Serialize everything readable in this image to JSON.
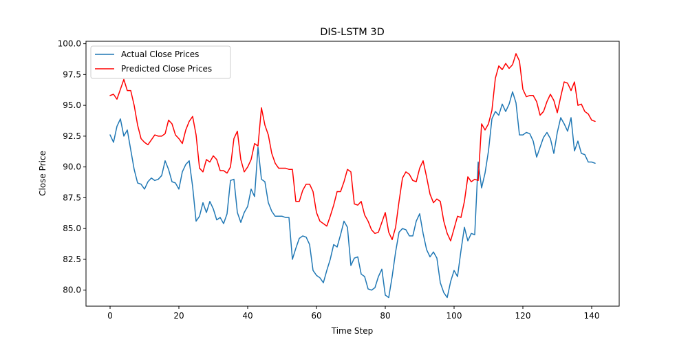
{
  "chart_data": {
    "type": "line",
    "title": "DIS-LSTM 3D",
    "xlabel": "Time Step",
    "ylabel": "Close Price",
    "xlim": [
      -7,
      148
    ],
    "ylim": [
      78.7,
      100.2
    ],
    "xticks": [
      0,
      20,
      40,
      60,
      80,
      100,
      120,
      140
    ],
    "xtick_labels": [
      "0",
      "20",
      "40",
      "60",
      "80",
      "100",
      "120",
      "140"
    ],
    "yticks": [
      80.0,
      82.5,
      85.0,
      87.5,
      90.0,
      92.5,
      95.0,
      97.5,
      100.0
    ],
    "ytick_labels": [
      "80.0",
      "82.5",
      "85.0",
      "87.5",
      "90.0",
      "92.5",
      "95.0",
      "97.5",
      "100.0"
    ],
    "grid": false,
    "legend_position": "upper-left",
    "series": [
      {
        "name": "Actual Close Prices",
        "color": "#1f77b4",
        "values": [
          92.6,
          92.0,
          93.3,
          93.9,
          92.5,
          93.0,
          91.4,
          89.8,
          88.7,
          88.6,
          88.2,
          88.8,
          89.1,
          88.9,
          89.0,
          89.3,
          90.5,
          89.8,
          88.8,
          88.7,
          88.2,
          89.6,
          90.2,
          90.5,
          88.4,
          85.6,
          86.0,
          87.1,
          86.3,
          87.2,
          86.6,
          85.7,
          85.9,
          85.4,
          86.2,
          88.9,
          89.0,
          86.3,
          85.5,
          86.3,
          86.8,
          88.2,
          87.6,
          91.6,
          89.0,
          88.8,
          87.1,
          86.4,
          86.0,
          86.0,
          86.0,
          85.9,
          85.9,
          82.5,
          83.4,
          84.2,
          84.4,
          84.3,
          83.7,
          81.6,
          81.2,
          81.0,
          80.6,
          81.6,
          82.5,
          83.7,
          83.5,
          84.5,
          85.6,
          85.1,
          82.0,
          82.6,
          82.7,
          81.3,
          81.1,
          80.1,
          80.0,
          80.2,
          81.1,
          81.7,
          79.6,
          79.4,
          81.1,
          83.1,
          84.7,
          85.0,
          84.9,
          84.4,
          84.4,
          85.6,
          86.2,
          84.6,
          83.3,
          82.7,
          83.1,
          82.6,
          80.6,
          79.8,
          79.4,
          80.7,
          81.6,
          81.1,
          83.2,
          85.1,
          84.0,
          84.6,
          84.5,
          90.4,
          88.3,
          89.5,
          91.3,
          93.9,
          94.5,
          94.2,
          95.1,
          94.5,
          95.1,
          96.1,
          95.2,
          92.6,
          92.6,
          92.8,
          92.7,
          92.1,
          90.8,
          91.6,
          92.4,
          92.8,
          92.3,
          91.1,
          92.8,
          94.0,
          93.5,
          92.9,
          94.0,
          91.3,
          92.1,
          91.1,
          91.0,
          90.4,
          90.4,
          90.3
        ]
      },
      {
        "name": "Predicted Close Prices",
        "color": "#ff0000",
        "values": [
          95.8,
          95.9,
          95.5,
          96.3,
          97.1,
          96.2,
          96.2,
          95.0,
          93.4,
          92.3,
          92.0,
          91.8,
          92.2,
          92.6,
          92.5,
          92.5,
          92.7,
          93.8,
          93.5,
          92.6,
          92.3,
          91.9,
          93.0,
          93.7,
          94.1,
          92.6,
          89.9,
          89.6,
          90.6,
          90.4,
          90.9,
          90.6,
          89.7,
          89.7,
          89.5,
          90.0,
          92.3,
          92.9,
          90.6,
          89.6,
          90.0,
          90.6,
          91.9,
          91.7,
          94.8,
          93.4,
          92.6,
          91.1,
          90.3,
          89.9,
          89.9,
          89.9,
          89.8,
          89.8,
          87.2,
          87.2,
          88.1,
          88.6,
          88.6,
          88.0,
          86.3,
          85.6,
          85.4,
          85.2,
          86.0,
          86.9,
          88.0,
          88.0,
          88.8,
          89.8,
          89.6,
          87.0,
          86.9,
          87.2,
          86.1,
          85.6,
          84.9,
          84.6,
          84.7,
          85.5,
          86.3,
          84.7,
          84.1,
          85.1,
          87.2,
          89.1,
          89.6,
          89.4,
          88.9,
          88.8,
          89.9,
          90.5,
          89.2,
          87.8,
          87.1,
          87.4,
          87.2,
          85.6,
          84.6,
          84.0,
          85.0,
          86.0,
          85.9,
          87.2,
          89.2,
          88.8,
          89.0,
          88.9,
          93.5,
          93.0,
          93.5,
          94.6,
          97.2,
          98.2,
          97.9,
          98.4,
          98.0,
          98.3,
          99.2,
          98.6,
          96.3,
          95.7,
          95.8,
          95.8,
          95.3,
          94.2,
          94.5,
          95.3,
          95.9,
          95.4,
          94.4,
          95.7,
          96.9,
          96.8,
          96.2,
          96.9,
          95.0,
          95.1,
          94.5,
          94.3,
          93.8,
          93.7
        ]
      }
    ]
  }
}
